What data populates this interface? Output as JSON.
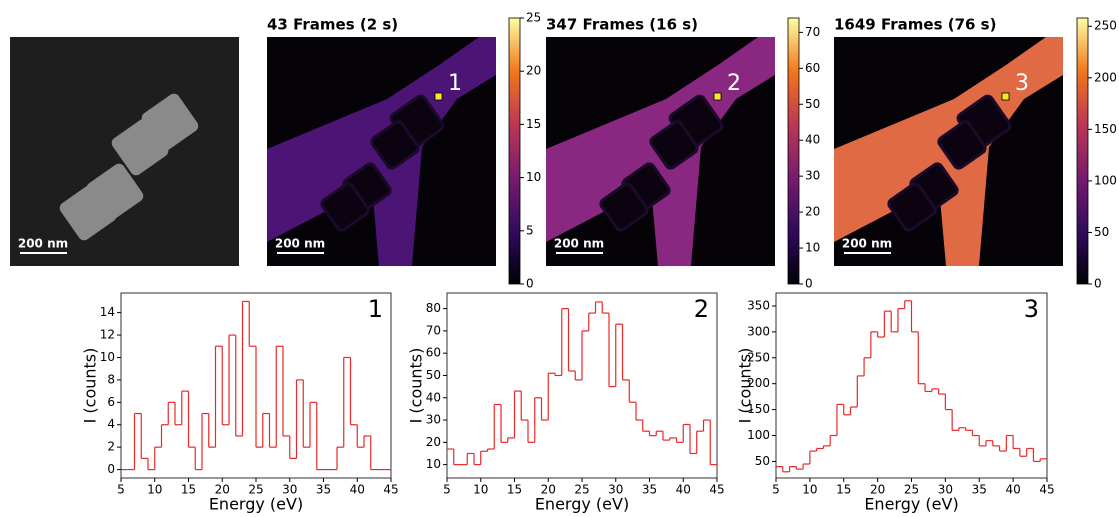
{
  "chart_data": [
    {
      "type": "image",
      "colormap": "gray",
      "scale_bar": "200 nm"
    },
    {
      "type": "image",
      "colormap": "inferno",
      "title": "43 Frames (2 s)",
      "annotation": "1",
      "scale_bar": "200 nm",
      "ylim": [
        0,
        25
      ],
      "yticks": [
        0,
        5,
        10,
        15,
        20,
        25
      ]
    },
    {
      "type": "image",
      "colormap": "inferno",
      "title": "347 Frames (16 s)",
      "annotation": "2",
      "scale_bar": "200 nm",
      "ylim": [
        0,
        74
      ],
      "yticks": [
        0,
        10,
        20,
        30,
        40,
        50,
        60,
        70
      ]
    },
    {
      "type": "image",
      "colormap": "inferno",
      "title": "1649 Frames (76 s)",
      "annotation": "3",
      "scale_bar": "200 nm",
      "ylim": [
        0,
        258
      ],
      "yticks": [
        0,
        50,
        100,
        150,
        200,
        250
      ]
    },
    {
      "type": "histogram",
      "annotation": "1",
      "xlabel": "Energy (eV)",
      "ylabel": "I (counts)",
      "color": "#e8292b",
      "bins": [
        5,
        6,
        7,
        8,
        9,
        10,
        11,
        12,
        13,
        14,
        15,
        16,
        17,
        18,
        19,
        20,
        21,
        22,
        23,
        24,
        25,
        26,
        27,
        28,
        29,
        30,
        31,
        32,
        33,
        34,
        35,
        36,
        37,
        38,
        39,
        40,
        41,
        42,
        43,
        44,
        45
      ],
      "values": [
        0,
        0,
        5,
        1,
        0,
        2,
        4,
        6,
        4,
        7,
        2,
        0,
        5,
        2,
        11,
        4,
        12,
        3,
        15,
        11,
        2,
        5,
        2,
        11,
        3,
        1,
        8,
        2,
        6,
        0,
        0,
        0,
        2,
        10,
        4,
        2,
        3,
        0,
        0,
        0
      ],
      "xlim": [
        5,
        45
      ],
      "xticks": [
        5,
        10,
        15,
        20,
        25,
        30,
        35,
        40,
        45
      ],
      "ylim": [
        -0.75,
        15.75
      ],
      "yticks": [
        0,
        2,
        4,
        6,
        8,
        10,
        12,
        14
      ]
    },
    {
      "type": "histogram",
      "annotation": "2",
      "xlabel": "Energy (eV)",
      "ylabel": "I (counts)",
      "color": "#e8292b",
      "bins": [
        5,
        6,
        7,
        8,
        9,
        10,
        11,
        12,
        13,
        14,
        15,
        16,
        17,
        18,
        19,
        20,
        21,
        22,
        23,
        24,
        25,
        26,
        27,
        28,
        29,
        30,
        31,
        32,
        33,
        34,
        35,
        36,
        37,
        38,
        39,
        40,
        41,
        42,
        43,
        44,
        45
      ],
      "values": [
        17,
        10,
        10,
        15,
        10,
        16,
        17,
        37,
        20,
        22,
        43,
        30,
        20,
        40,
        30,
        51,
        50,
        80,
        52,
        48,
        70,
        78,
        83,
        78,
        45,
        73,
        48,
        38,
        30,
        25,
        23,
        25,
        21,
        22,
        20,
        28,
        15,
        25,
        30,
        10
      ],
      "xlim": [
        5,
        45
      ],
      "xticks": [
        5,
        10,
        15,
        20,
        25,
        30,
        35,
        40,
        45
      ],
      "ylim": [
        4,
        87
      ],
      "yticks": [
        10,
        20,
        30,
        40,
        50,
        60,
        70,
        80
      ]
    },
    {
      "type": "histogram",
      "annotation": "3",
      "xlabel": "Energy (eV)",
      "ylabel": "I (counts)",
      "color": "#e8292b",
      "bins": [
        5,
        6,
        7,
        8,
        9,
        10,
        11,
        12,
        13,
        14,
        15,
        16,
        17,
        18,
        19,
        20,
        21,
        22,
        23,
        24,
        25,
        26,
        27,
        28,
        29,
        30,
        31,
        32,
        33,
        34,
        35,
        36,
        37,
        38,
        39,
        40,
        41,
        42,
        43,
        44,
        45
      ],
      "values": [
        40,
        30,
        40,
        35,
        45,
        70,
        75,
        80,
        100,
        160,
        140,
        155,
        215,
        250,
        300,
        290,
        340,
        300,
        345,
        360,
        300,
        200,
        185,
        190,
        180,
        150,
        110,
        115,
        110,
        100,
        80,
        90,
        80,
        70,
        100,
        75,
        60,
        75,
        50,
        55
      ],
      "xlim": [
        5,
        45
      ],
      "xticks": [
        5,
        10,
        15,
        20,
        25,
        30,
        35,
        40,
        45
      ],
      "ylim": [
        18,
        375
      ],
      "yticks": [
        50,
        100,
        150,
        200,
        250,
        300,
        350
      ]
    }
  ]
}
